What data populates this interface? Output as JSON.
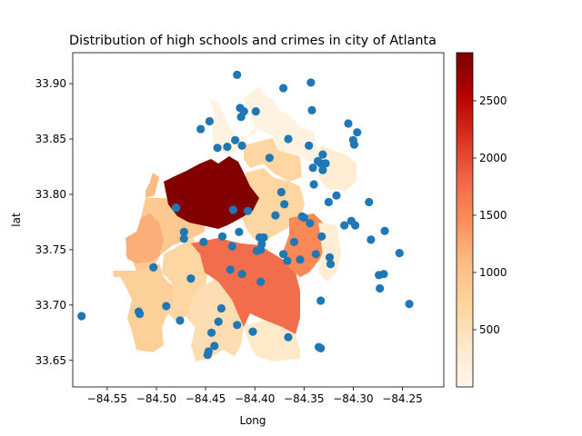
{
  "chart_data": {
    "type": "scatter",
    "title": "Distribution of high schools and crimes in city of Atlanta",
    "xlabel": "Long",
    "ylabel": "lat",
    "xlim": [
      -84.585,
      -84.208
    ],
    "ylim": [
      33.626,
      33.928
    ],
    "xticks": [
      -84.55,
      -84.5,
      -84.45,
      -84.4,
      -84.35,
      -84.3,
      -84.25
    ],
    "xtick_labels": [
      "−84.55",
      "−84.50",
      "−84.45",
      "−84.40",
      "−84.35",
      "−84.30",
      "−84.25"
    ],
    "yticks": [
      33.65,
      33.7,
      33.75,
      33.8,
      33.85,
      33.9
    ],
    "ytick_labels": [
      "33.65",
      "33.70",
      "33.75",
      "33.80",
      "33.85",
      "33.90"
    ],
    "grid": false,
    "colorbar": {
      "colormap": "OrRd",
      "range": [
        0,
        2920
      ],
      "ticks": [
        500,
        1000,
        1500,
        2000,
        2500
      ],
      "tick_labels": [
        "500",
        "1000",
        "1500",
        "2000",
        "2500"
      ],
      "stops": [
        "#fff7ec",
        "#fee8c8",
        "#fdd49e",
        "#fdbb84",
        "#fc8d59",
        "#ef6548",
        "#d7301f",
        "#b30000",
        "#7f0000"
      ]
    },
    "choropleth": [
      {
        "value": 2900,
        "lon": -84.44,
        "lat": 33.78
      },
      {
        "value": 150,
        "lon": -84.38,
        "lat": 33.87
      },
      {
        "value": 600,
        "lon": -84.36,
        "lat": 33.83
      },
      {
        "value": 800,
        "lon": -84.37,
        "lat": 33.78
      },
      {
        "value": 1400,
        "lon": -84.42,
        "lat": 33.73
      },
      {
        "value": 1700,
        "lon": -84.38,
        "lat": 33.7
      },
      {
        "value": 1000,
        "lon": -84.48,
        "lat": 33.71
      },
      {
        "value": 900,
        "lon": -84.51,
        "lat": 33.72
      },
      {
        "value": 700,
        "lon": -84.34,
        "lat": 33.75
      },
      {
        "value": 1100,
        "lon": -84.37,
        "lat": 33.74
      },
      {
        "value": 250,
        "lon": -84.32,
        "lat": 33.74
      },
      {
        "value": 400,
        "lon": -84.36,
        "lat": 33.67
      },
      {
        "value": 600,
        "lon": -84.43,
        "lat": 33.67
      },
      {
        "value": 1200,
        "lon": -84.51,
        "lat": 33.76
      }
    ],
    "series": [
      {
        "name": "high schools",
        "color": "#1f77b4",
        "points": [
          [
            -84.576,
            33.69
          ],
          [
            -84.518,
            33.694
          ],
          [
            -84.517,
            33.692
          ],
          [
            -84.503,
            33.734
          ],
          [
            -84.49,
            33.699
          ],
          [
            -84.48,
            33.788
          ],
          [
            -84.476,
            33.686
          ],
          [
            -84.472,
            33.76
          ],
          [
            -84.472,
            33.766
          ],
          [
            -84.465,
            33.724
          ],
          [
            -84.455,
            33.859
          ],
          [
            -84.452,
            33.757
          ],
          [
            -84.448,
            33.655
          ],
          [
            -84.447,
            33.658
          ],
          [
            -84.446,
            33.866
          ],
          [
            -84.444,
            33.675
          ],
          [
            -84.441,
            33.663
          ],
          [
            -84.438,
            33.842
          ],
          [
            -84.437,
            33.685
          ],
          [
            -84.434,
            33.697
          ],
          [
            -84.433,
            33.762
          ],
          [
            -84.428,
            33.843
          ],
          [
            -84.425,
            33.732
          ],
          [
            -84.423,
            33.753
          ],
          [
            -84.422,
            33.786
          ],
          [
            -84.42,
            33.849
          ],
          [
            -84.418,
            33.908
          ],
          [
            -84.418,
            33.682
          ],
          [
            -84.416,
            33.766
          ],
          [
            -84.415,
            33.878
          ],
          [
            -84.414,
            33.87
          ],
          [
            -84.413,
            33.844
          ],
          [
            -84.413,
            33.728
          ],
          [
            -84.411,
            33.875
          ],
          [
            -84.407,
            33.785
          ],
          [
            -84.402,
            33.676
          ],
          [
            -84.399,
            33.875
          ],
          [
            -84.398,
            33.749
          ],
          [
            -84.395,
            33.761
          ],
          [
            -84.394,
            33.721
          ],
          [
            -84.394,
            33.75
          ],
          [
            -84.393,
            33.755
          ],
          [
            -84.391,
            33.761
          ],
          [
            -84.385,
            33.833
          ],
          [
            -84.379,
            33.781
          ],
          [
            -84.373,
            33.802
          ],
          [
            -84.371,
            33.896
          ],
          [
            -84.371,
            33.746
          ],
          [
            -84.37,
            33.791
          ],
          [
            -84.367,
            33.74
          ],
          [
            -84.366,
            33.85
          ],
          [
            -84.366,
            33.671
          ],
          [
            -84.36,
            33.757
          ],
          [
            -84.354,
            33.741
          ],
          [
            -84.352,
            33.78
          ],
          [
            -84.35,
            33.779
          ],
          [
            -84.345,
            33.844
          ],
          [
            -84.344,
            33.774
          ],
          [
            -84.343,
            33.901
          ],
          [
            -84.342,
            33.876
          ],
          [
            -84.341,
            33.824
          ],
          [
            -84.34,
            33.809
          ],
          [
            -84.338,
            33.746
          ],
          [
            -84.336,
            33.83
          ],
          [
            -84.335,
            33.662
          ],
          [
            -84.333,
            33.661
          ],
          [
            -84.333,
            33.704
          ],
          [
            -84.333,
            33.828
          ],
          [
            -84.332,
            33.762
          ],
          [
            -84.331,
            33.822
          ],
          [
            -84.331,
            33.836
          ],
          [
            -84.328,
            33.828
          ],
          [
            -84.325,
            33.793
          ],
          [
            -84.324,
            33.743
          ],
          [
            -84.323,
            33.737
          ],
          [
            -84.317,
            33.799
          ],
          [
            -84.309,
            33.772
          ],
          [
            -84.305,
            33.864
          ],
          [
            -84.302,
            33.776
          ],
          [
            -84.3,
            33.849
          ],
          [
            -84.299,
            33.845
          ],
          [
            -84.298,
            33.772
          ],
          [
            -84.296,
            33.856
          ],
          [
            -84.284,
            33.793
          ],
          [
            -84.282,
            33.759
          ],
          [
            -84.274,
            33.727
          ],
          [
            -84.273,
            33.715
          ],
          [
            -84.269,
            33.728
          ],
          [
            -84.268,
            33.767
          ],
          [
            -84.253,
            33.747
          ],
          [
            -84.243,
            33.701
          ]
        ]
      }
    ]
  }
}
